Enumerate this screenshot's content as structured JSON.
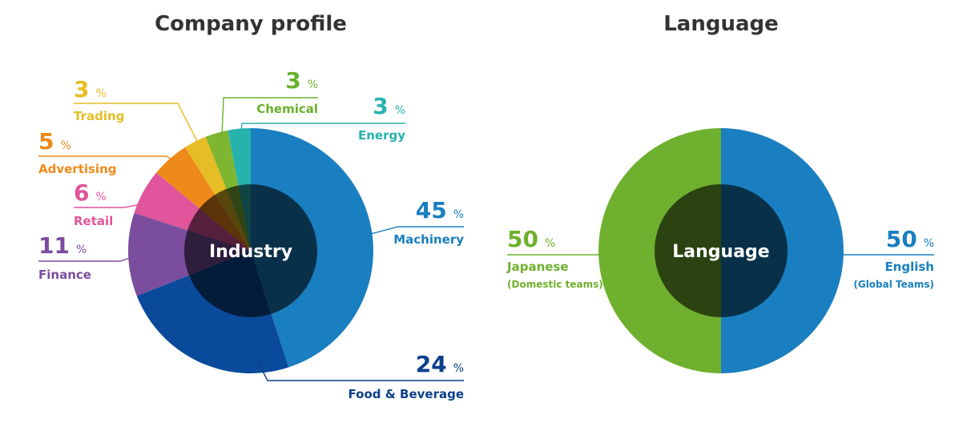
{
  "chart_data": [
    {
      "type": "pie",
      "title": "Company profile",
      "center_label": "Industry",
      "unit": "%",
      "categories": [
        "Machinery",
        "Food & Beverage",
        "Finance",
        "Retail",
        "Advertising",
        "Trading",
        "Chemical",
        "Energy"
      ],
      "values": [
        45,
        24,
        11,
        6,
        5,
        3,
        3,
        3
      ],
      "colors": [
        "#1a7fc0",
        "#0a4a9a",
        "#7b4d9e",
        "#e0559b",
        "#ee8a1a",
        "#e6bd24",
        "#7eb632",
        "#28b2ae"
      ],
      "label_colors": [
        "#1a7fc0",
        "#0a3f8c",
        "#7b4d9e",
        "#e0559b",
        "#ee8a1a",
        "#e6bd24",
        "#6ab02b",
        "#28b2ae"
      ]
    },
    {
      "type": "pie",
      "title": "Language",
      "center_label": "Language",
      "unit": "%",
      "categories": [
        "English",
        "Japanese"
      ],
      "sublabels": [
        "(Global Teams)",
        "(Domestic teams)"
      ],
      "values": [
        50,
        50
      ],
      "colors": [
        "#1a7fc0",
        "#6fb02e"
      ],
      "label_colors": [
        "#1a7fc0",
        "#6fb02e"
      ]
    }
  ]
}
